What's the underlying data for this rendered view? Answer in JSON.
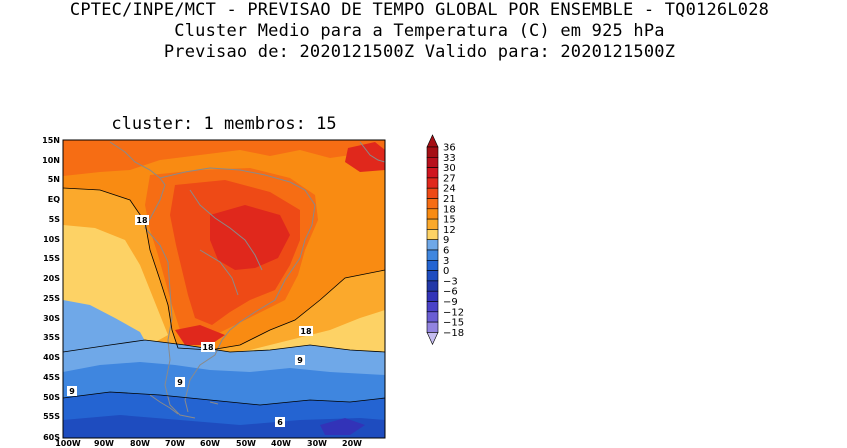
{
  "header": {
    "line1": "CPTEC/INPE/MCT - PREVISAO DE TEMPO GLOBAL POR ENSEMBLE - TQ0126L028",
    "line2": "Cluster Medio para a Temperatura (C) em 925 hPa",
    "line3": "Previsao de: 2020121500Z   Valido para: 2020121500Z"
  },
  "panel": {
    "subtitle": "cluster: 1  membros: 15"
  },
  "map": {
    "lat_labels": [
      "15N",
      "10N",
      "5N",
      "EQ",
      "5S",
      "10S",
      "15S",
      "20S",
      "25S",
      "30S",
      "35S",
      "40S",
      "45S",
      "50S",
      "55S",
      "60S"
    ],
    "lon_labels": [
      "100W",
      "90W",
      "80W",
      "70W",
      "60W",
      "50W",
      "40W",
      "30W",
      "20W"
    ],
    "contour_labels": [
      {
        "text": "18"
      },
      {
        "text": "18"
      },
      {
        "text": "18"
      },
      {
        "text": "9"
      },
      {
        "text": "9"
      },
      {
        "text": "9"
      },
      {
        "text": "6"
      }
    ]
  },
  "colorbar": {
    "levels": [
      "36",
      "33",
      "30",
      "27",
      "24",
      "21",
      "18",
      "15",
      "12",
      "9",
      "6",
      "3",
      "0",
      "-3",
      "-6",
      "-9",
      "-12",
      "-15",
      "-18"
    ],
    "colors": [
      "#a50f15",
      "#b8101c",
      "#d0151f",
      "#e0281c",
      "#ee4a16",
      "#f66d14",
      "#f98b12",
      "#fba92c",
      "#fdd265",
      "#6fa8e8",
      "#3f86df",
      "#2464d2",
      "#1e4cbf",
      "#2238a8",
      "#3233b8",
      "#4a42c8",
      "#6a5ed4",
      "#9284e0",
      "#c5bdef"
    ]
  }
}
